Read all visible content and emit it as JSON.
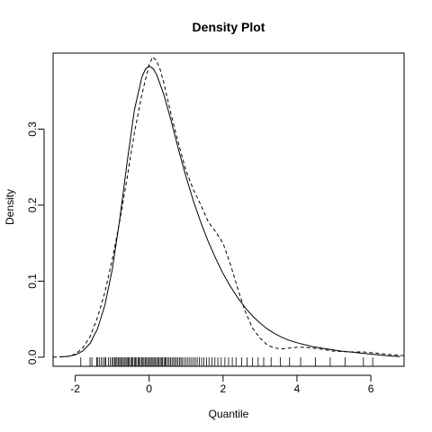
{
  "chart_data": {
    "type": "line",
    "title": "Density Plot",
    "xlabel": "Quantile",
    "ylabel": "Density",
    "xlim": [
      -2.6,
      6.9
    ],
    "ylim": [
      -0.012,
      0.4
    ],
    "x_ticks": [
      -2,
      0,
      2,
      4,
      6
    ],
    "x_tick_labels": [
      "-2",
      "0",
      "2",
      "4",
      "6"
    ],
    "y_ticks": [
      0.0,
      0.1,
      0.2,
      0.3
    ],
    "y_tick_labels": [
      "0.0",
      "0.1",
      "0.2",
      "0.3"
    ],
    "grid": false,
    "legend": "none",
    "series": [
      {
        "line_style": "solid",
        "color": "#000000",
        "x": [
          -2.4,
          -2.2,
          -2.0,
          -1.8,
          -1.6,
          -1.4,
          -1.2,
          -1.0,
          -0.8,
          -0.6,
          -0.4,
          -0.2,
          -0.1,
          0.0,
          0.1,
          0.2,
          0.4,
          0.6,
          0.8,
          1.0,
          1.2,
          1.4,
          1.6,
          1.8,
          2.0,
          2.2,
          2.4,
          2.6,
          2.8,
          3.0,
          3.2,
          3.4,
          3.6,
          3.8,
          4.0,
          4.4,
          4.8,
          5.2,
          5.6,
          6.0,
          6.4,
          6.8
        ],
        "y": [
          0.0005,
          0.001,
          0.003,
          0.008,
          0.018,
          0.037,
          0.068,
          0.115,
          0.18,
          0.255,
          0.325,
          0.368,
          0.379,
          0.383,
          0.38,
          0.372,
          0.345,
          0.31,
          0.272,
          0.237,
          0.205,
          0.177,
          0.152,
          0.13,
          0.11,
          0.093,
          0.078,
          0.065,
          0.054,
          0.045,
          0.037,
          0.031,
          0.026,
          0.022,
          0.019,
          0.014,
          0.011,
          0.008,
          0.006,
          0.004,
          0.002,
          0.0008
        ]
      },
      {
        "line_style": "dashed",
        "color": "#000000",
        "x": [
          -2.6,
          -2.2,
          -2.0,
          -1.8,
          -1.6,
          -1.4,
          -1.2,
          -1.0,
          -0.8,
          -0.6,
          -0.4,
          -0.2,
          0.0,
          0.1,
          0.2,
          0.3,
          0.4,
          0.6,
          0.8,
          1.0,
          1.2,
          1.4,
          1.6,
          1.8,
          2.0,
          2.2,
          2.4,
          2.6,
          2.8,
          3.0,
          3.2,
          3.4,
          3.6,
          3.8,
          4.0,
          4.2,
          4.6,
          5.0,
          5.4,
          5.8,
          6.2,
          6.6,
          6.9
        ],
        "y": [
          0.0,
          0.001,
          0.004,
          0.012,
          0.027,
          0.052,
          0.085,
          0.128,
          0.178,
          0.235,
          0.295,
          0.345,
          0.385,
          0.395,
          0.39,
          0.378,
          0.36,
          0.318,
          0.28,
          0.245,
          0.22,
          0.2,
          0.178,
          0.165,
          0.15,
          0.122,
          0.09,
          0.06,
          0.038,
          0.025,
          0.016,
          0.012,
          0.011,
          0.012,
          0.013,
          0.013,
          0.011,
          0.008,
          0.007,
          0.007,
          0.005,
          0.003,
          0.002
        ]
      }
    ],
    "rug": [
      -1.85,
      -1.6,
      -1.55,
      -1.42,
      -1.4,
      -1.35,
      -1.3,
      -1.25,
      -1.2,
      -1.17,
      -1.1,
      -1.05,
      -1.0,
      -0.97,
      -0.93,
      -0.9,
      -0.87,
      -0.83,
      -0.8,
      -0.77,
      -0.74,
      -0.7,
      -0.67,
      -0.63,
      -0.6,
      -0.57,
      -0.54,
      -0.5,
      -0.47,
      -0.44,
      -0.4,
      -0.37,
      -0.34,
      -0.3,
      -0.27,
      -0.24,
      -0.2,
      -0.17,
      -0.14,
      -0.1,
      -0.07,
      -0.04,
      0.0,
      0.03,
      0.06,
      0.1,
      0.13,
      0.16,
      0.2,
      0.23,
      0.26,
      0.3,
      0.33,
      0.36,
      0.4,
      0.43,
      0.46,
      0.5,
      0.54,
      0.58,
      0.62,
      0.66,
      0.7,
      0.74,
      0.78,
      0.82,
      0.86,
      0.9,
      0.95,
      1.0,
      1.05,
      1.1,
      1.15,
      1.2,
      1.25,
      1.3,
      1.36,
      1.42,
      1.48,
      1.55,
      1.62,
      1.7,
      1.78,
      1.86,
      1.95,
      2.05,
      2.15,
      2.25,
      2.35,
      2.5,
      2.65,
      2.8,
      2.95,
      3.1,
      3.3,
      3.55,
      3.8,
      4.1,
      4.5,
      4.9,
      5.3,
      5.8,
      6.05
    ]
  }
}
